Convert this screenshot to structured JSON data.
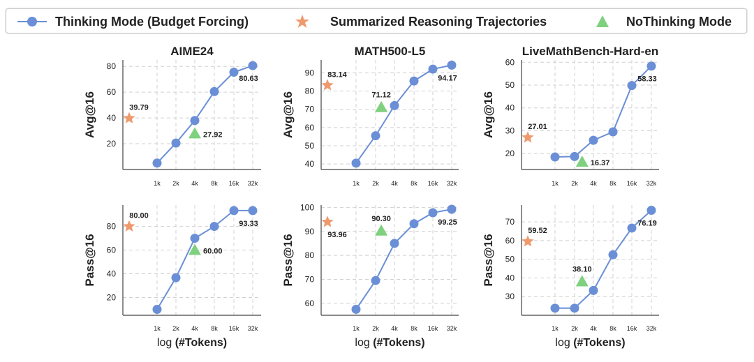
{
  "legend": {
    "thinking": "Thinking Mode (Budget Forcing)",
    "summarized": "Summarized Reasoning Trajectories",
    "nothinking": "NoThinking Mode"
  },
  "colors": {
    "blue": "#6a8fd6",
    "orange": "#ef9a6d",
    "green": "#7fd07f",
    "grid": "#d0d0d0"
  },
  "xlabel": {
    "prefix": "log ",
    "bold": "(#Tokens)"
  },
  "x_categories": [
    "1k",
    "2k",
    "4k",
    "8k",
    "16k",
    "32k"
  ],
  "chart_data": [
    {
      "type": "line",
      "title": "AIME24",
      "ylabel": "Avg@16",
      "ylim": [
        0,
        85
      ],
      "yticks": [
        20,
        40,
        60,
        80
      ],
      "thinking": [
        5.0,
        20.5,
        38.0,
        60.5,
        75.5,
        80.63
      ],
      "summarized": {
        "value": 39.79,
        "label": "39.79"
      },
      "nothinking": {
        "x": 2,
        "value": 27.92,
        "label": "27.92"
      },
      "last_label": "80.63"
    },
    {
      "type": "line",
      "title": "MATH500-L5",
      "ylabel": "Avg@16",
      "ylim": [
        37,
        97
      ],
      "yticks": [
        40,
        50,
        60,
        70,
        80,
        90
      ],
      "thinking": [
        40.5,
        55.5,
        72.0,
        85.5,
        92.0,
        94.17
      ],
      "summarized": {
        "value": 83.14,
        "label": "83.14"
      },
      "nothinking": {
        "x": 1.3,
        "value": 71.12,
        "label": "71.12"
      },
      "last_label": "94.17"
    },
    {
      "type": "line",
      "title": "LiveMathBench-Hard-en",
      "ylabel": "Avg@16",
      "ylim": [
        13,
        61
      ],
      "yticks": [
        20,
        30,
        40,
        50,
        60
      ],
      "thinking": [
        18.5,
        18.7,
        25.8,
        29.5,
        49.8,
        58.33
      ],
      "summarized": {
        "value": 27.01,
        "label": "27.01"
      },
      "nothinking": {
        "x": 1.4,
        "value": 16.37,
        "label": "16.37"
      },
      "last_label": "58.33"
    },
    {
      "type": "line",
      "title": "",
      "ylabel": "Pass@16",
      "ylim": [
        5,
        98
      ],
      "yticks": [
        20,
        40,
        60,
        80
      ],
      "thinking": [
        10.0,
        36.7,
        70.0,
        80.0,
        93.33,
        93.33
      ],
      "summarized": {
        "value": 80.0,
        "label": "80.00"
      },
      "nothinking": {
        "x": 2,
        "value": 60.0,
        "label": "60.00"
      },
      "last_label": "93.33"
    },
    {
      "type": "line",
      "title": "",
      "ylabel": "Pass@16",
      "ylim": [
        55,
        101
      ],
      "yticks": [
        60,
        70,
        80,
        90,
        100
      ],
      "thinking": [
        57.5,
        69.5,
        85.0,
        93.2,
        97.8,
        99.25
      ],
      "summarized": {
        "value": 93.96,
        "label": "93.96"
      },
      "nothinking": {
        "x": 1.3,
        "value": 90.3,
        "label": "90.30"
      },
      "last_label": "99.25"
    },
    {
      "type": "line",
      "title": "",
      "ylabel": "Pass@16",
      "ylim": [
        20,
        79
      ],
      "yticks": [
        30,
        40,
        50,
        60,
        70
      ],
      "thinking": [
        23.8,
        23.8,
        33.3,
        52.4,
        66.7,
        76.19
      ],
      "summarized": {
        "value": 59.52,
        "label": "59.52"
      },
      "nothinking": {
        "x": 1.4,
        "value": 38.1,
        "label": "38.10"
      },
      "last_label": "76.19"
    }
  ]
}
